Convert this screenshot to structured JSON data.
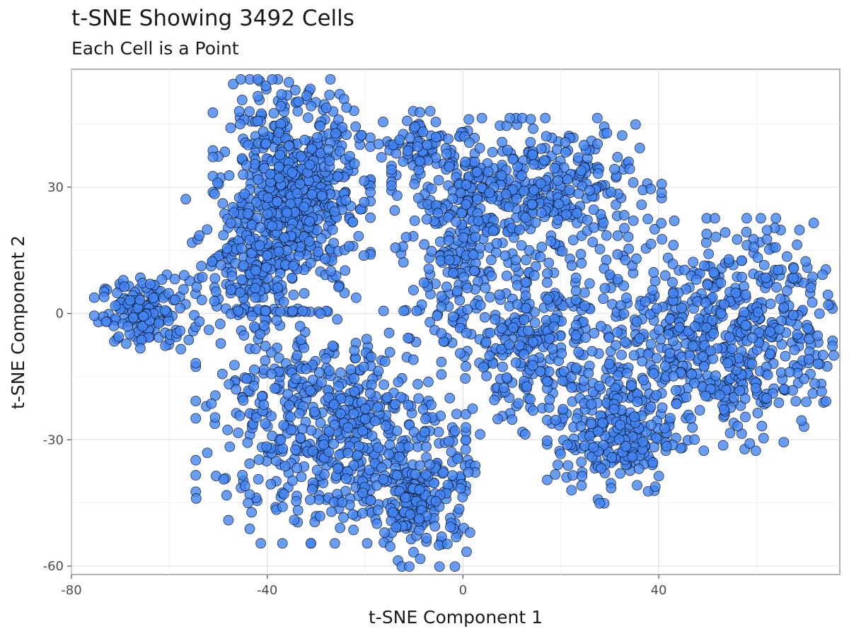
{
  "chart_data": {
    "type": "scatter",
    "title": "t-SNE Showing 3492 Cells",
    "subtitle": "Each Cell is a Point",
    "xlabel": "t-SNE Component 1",
    "ylabel": "t-SNE Component 2",
    "xlim": [
      -80,
      77
    ],
    "ylim": [
      -62,
      58
    ],
    "x_ticks": [
      -80,
      -40,
      0,
      40
    ],
    "x_tick_labels": [
      "-80",
      "-40",
      "0",
      "40"
    ],
    "y_ticks": [
      -60,
      -30,
      0,
      30
    ],
    "y_tick_labels": [
      "-60",
      "-30",
      "0",
      "30"
    ],
    "grid": true,
    "point_count": 3492,
    "marker": {
      "fill": "#4285F4",
      "stroke": "#000000",
      "fill_opacity": 0.8
    },
    "clusters": [
      {
        "name": "far-left",
        "center": [
          -65,
          0
        ],
        "spread": [
          4.5,
          4
        ],
        "n": 160
      },
      {
        "name": "upper-left",
        "center": [
          -35,
          28
        ],
        "spread": [
          7,
          12
        ],
        "n": 650
      },
      {
        "name": "upper-left-lobe",
        "center": [
          -44,
          10
        ],
        "spread": [
          6,
          8
        ],
        "n": 150
      },
      {
        "name": "upper-mid-small",
        "center": [
          -8,
          40
        ],
        "spread": [
          4,
          3.5
        ],
        "n": 70
      },
      {
        "name": "upper-right",
        "center": [
          13,
          28
        ],
        "spread": [
          12,
          8
        ],
        "n": 420
      },
      {
        "name": "mid-left-column",
        "center": [
          0,
          13
        ],
        "spread": [
          6,
          10
        ],
        "n": 150
      },
      {
        "name": "lower-left",
        "center": [
          -27,
          -27
        ],
        "spread": [
          12,
          12
        ],
        "n": 560
      },
      {
        "name": "lower-left-tail",
        "center": [
          -9,
          -44
        ],
        "spread": [
          5,
          7
        ],
        "n": 200
      },
      {
        "name": "center",
        "center": [
          14,
          -8
        ],
        "spread": [
          8,
          9
        ],
        "n": 250
      },
      {
        "name": "right-big",
        "center": [
          53,
          -5
        ],
        "spread": [
          13,
          12
        ],
        "n": 650
      },
      {
        "name": "right-lower",
        "center": [
          31,
          -29
        ],
        "spread": [
          6,
          7
        ],
        "n": 232
      }
    ]
  }
}
